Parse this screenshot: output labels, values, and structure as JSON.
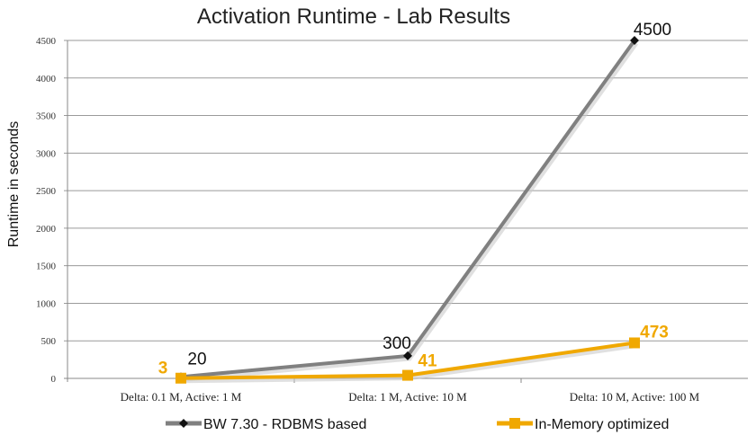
{
  "chart_data": {
    "type": "line",
    "title": "Activation Runtime - Lab Results",
    "xlabel": "",
    "ylabel": "Runtime in seconds",
    "ylim": [
      0,
      4500
    ],
    "yticks": [
      0,
      500,
      1000,
      1500,
      2000,
      2500,
      3000,
      3500,
      4000,
      4500
    ],
    "grid": true,
    "legend_position": "bottom",
    "categories": [
      "Delta: 0.1 M, Active: 1 M",
      "Delta: 1 M, Active: 10 M",
      "Delta: 10 M, Active: 100 M"
    ],
    "series": [
      {
        "name": "BW 7.30 -  RDBMS based",
        "values": [
          20,
          300,
          4500
        ],
        "labels": [
          "20",
          "300",
          "4500"
        ],
        "color": "#808080",
        "label_color": "#111111",
        "marker": "diamond"
      },
      {
        "name": "In-Memory optimized",
        "values": [
          3,
          41,
          473
        ],
        "labels": [
          "3",
          "41",
          "473"
        ],
        "color": "#f0a800",
        "label_color": "#f0a800",
        "marker": "square"
      }
    ]
  }
}
